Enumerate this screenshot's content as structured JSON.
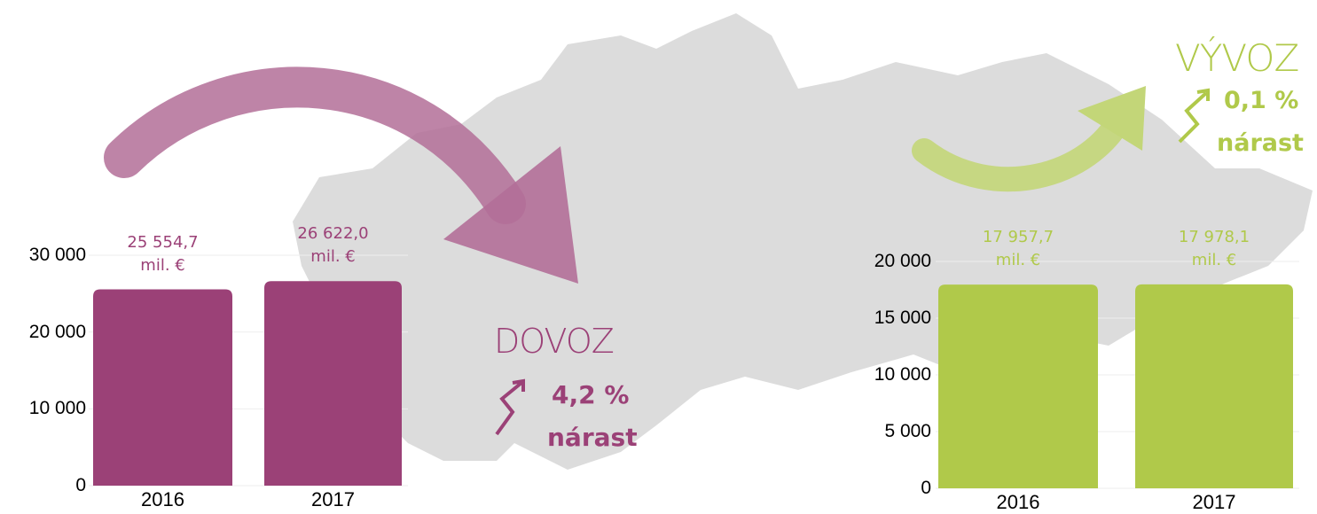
{
  "chart_data": [
    {
      "type": "bar",
      "label": "DOVOZ",
      "change": "4,2 %",
      "change_label": "nárast",
      "color": "#9b4177",
      "categories": [
        "2016",
        "2017"
      ],
      "values": [
        25554.7,
        26622.0
      ],
      "value_labels": [
        "25 554,7 mil. €",
        "26 622,0 mil. €"
      ],
      "ylim": [
        0,
        30000
      ],
      "yticks": [
        0,
        {
          "value": 10000,
          "label": "10 000"
        },
        {
          "value": 20000,
          "label": "20 000"
        },
        {
          "value": 30000,
          "label": "30 000"
        }
      ],
      "grid": true
    },
    {
      "type": "bar",
      "label": "VÝVOZ",
      "change": "0,1 %",
      "change_label": "nárast",
      "color": "#b0c94a",
      "categories": [
        "2016",
        "2017"
      ],
      "values": [
        17957.7,
        17978.1
      ],
      "value_labels": [
        "17 957,7 mil. €",
        "17 978,1 mil. €"
      ],
      "ylim": [
        0,
        20000
      ],
      "yticks": [
        0,
        {
          "value": 5000,
          "label": "5 000"
        },
        {
          "value": 10000,
          "label": "10 000"
        },
        {
          "value": 15000,
          "label": "15 000"
        },
        {
          "value": 20000,
          "label": "20 000"
        }
      ],
      "grid": true
    }
  ]
}
